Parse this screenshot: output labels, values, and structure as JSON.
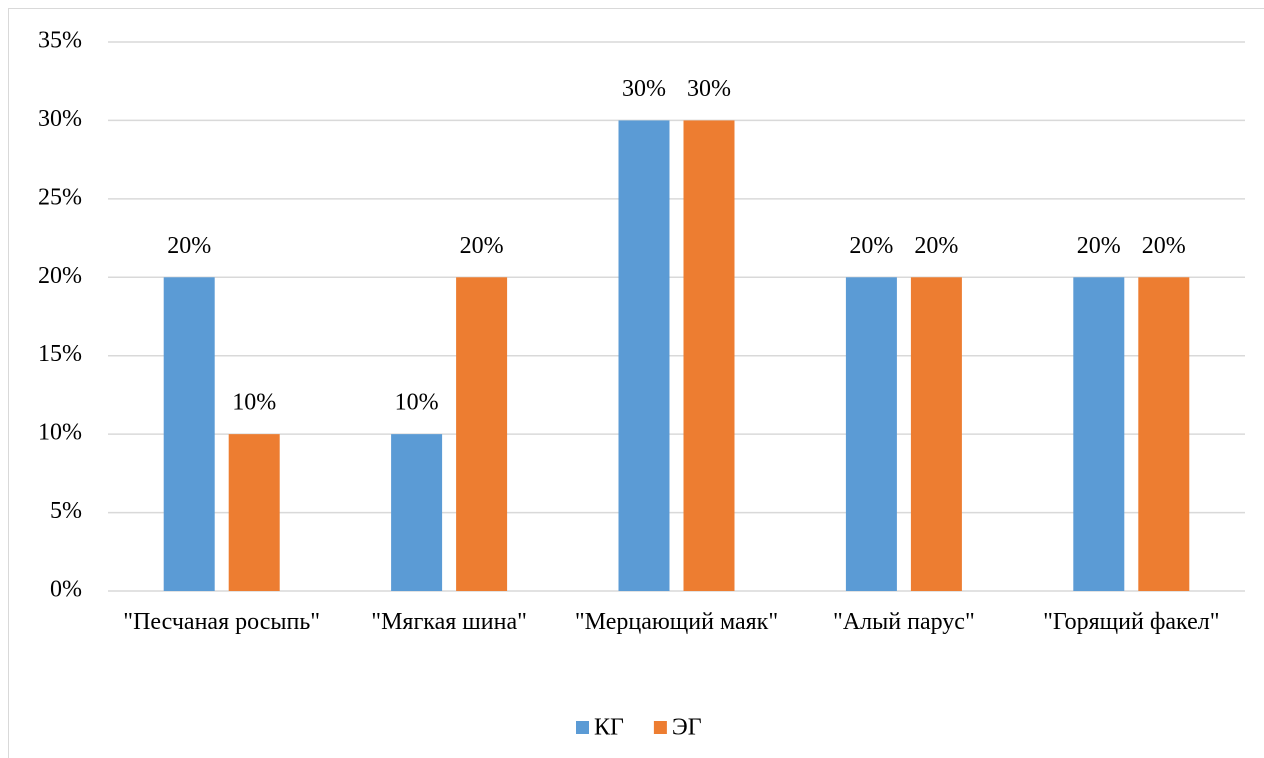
{
  "chart_data": {
    "type": "bar",
    "categories": [
      "\"Песчаная росыпь\"",
      "\"Мягкая шина\"",
      "\"Мерцающий маяк\"",
      "\"Алый парус\"",
      "\"Горящий факел\""
    ],
    "series": [
      {
        "name": "КГ",
        "color": "#5b9bd5",
        "values": [
          20,
          10,
          30,
          20,
          20
        ],
        "value_labels": [
          "20%",
          "10%",
          "30%",
          "20%",
          "20%"
        ]
      },
      {
        "name": "ЭГ",
        "color": "#ed7d31",
        "values": [
          10,
          20,
          30,
          20,
          20
        ],
        "value_labels": [
          "10%",
          "20%",
          "30%",
          "20%",
          "20%"
        ]
      }
    ],
    "ylim": [
      0,
      35
    ],
    "yticks": [
      {
        "value": 0,
        "label": "0%"
      },
      {
        "value": 5,
        "label": "5%"
      },
      {
        "value": 10,
        "label": "10%"
      },
      {
        "value": 15,
        "label": "15%"
      },
      {
        "value": 20,
        "label": "20%"
      },
      {
        "value": 25,
        "label": "25%"
      },
      {
        "value": 30,
        "label": "30%"
      },
      {
        "value": 35,
        "label": "35%"
      }
    ],
    "grid": true,
    "legend": "bottom"
  }
}
